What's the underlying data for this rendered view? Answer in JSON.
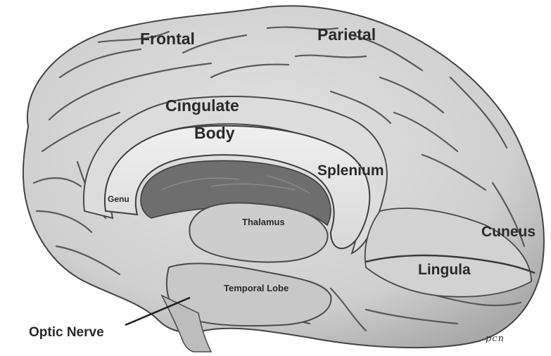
{
  "labels": {
    "frontal": "Frontal",
    "parietal": "Parietal",
    "cingulate": "Cingulate",
    "body": "Body",
    "splenium": "Splenium",
    "genu": "Genu",
    "thalamus": "Thalamus",
    "cuneus": "Cuneus",
    "lingula": "Lingula",
    "temporal_lobe": "Temporal Lobe",
    "optic_nerve": "Optic Nerve"
  },
  "signature": "pcn",
  "colors": {
    "background": "#ffffff",
    "cortex_fill": "#d6d6d6",
    "sulcus_stroke": "#555555",
    "corpus_callosum": "#e9e9e9",
    "ventricle": "#6e6e6e",
    "label_text": "#2a2a2a"
  }
}
